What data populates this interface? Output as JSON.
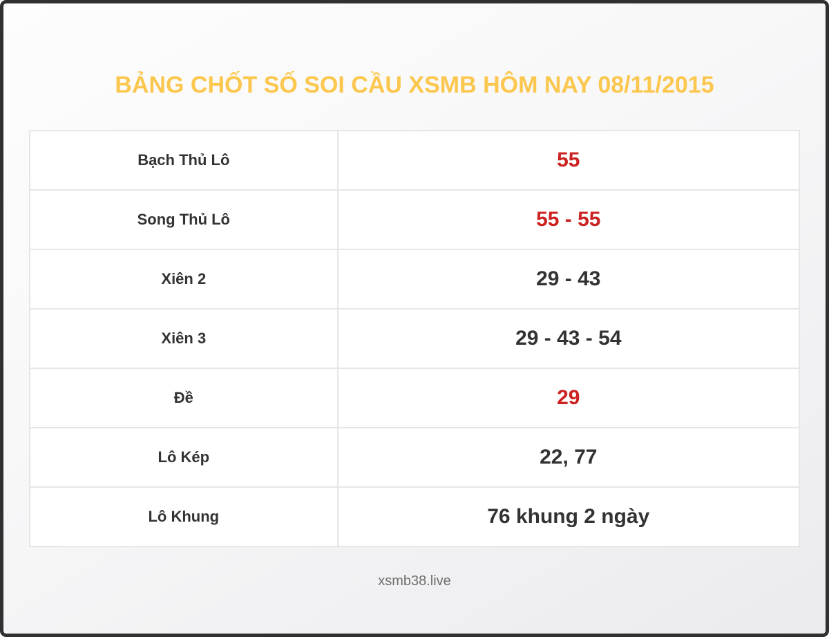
{
  "page": {
    "title": "BẢNG CHỐT SỐ SOI CẦU XSMB HÔM NAY 08/11/2015",
    "footer_site": "xsmb38.live"
  },
  "colors": {
    "title_yellow": "#fbc74e",
    "highlight_red": "#cc2222",
    "text_dark": "#333333",
    "cell_border": "#e6e6e6",
    "frame_border": "#303033",
    "cell_background": "#ffffff"
  },
  "table": {
    "rows": [
      {
        "label": "Bạch Thủ Lô",
        "value": "55",
        "highlighted": true
      },
      {
        "label": "Song Thủ Lô",
        "value": "55 - 55",
        "highlighted": true
      },
      {
        "label": "Xiên 2",
        "value": "29 - 43",
        "highlighted": false
      },
      {
        "label": "Xiên 3",
        "value": "29 - 43 - 54",
        "highlighted": false
      },
      {
        "label": "Đề",
        "value": "29",
        "highlighted": true
      },
      {
        "label": "Lô Kép",
        "value": "22, 77",
        "highlighted": false
      },
      {
        "label": "Lô Khung",
        "value": "76 khung 2 ngày",
        "highlighted": false
      }
    ]
  }
}
